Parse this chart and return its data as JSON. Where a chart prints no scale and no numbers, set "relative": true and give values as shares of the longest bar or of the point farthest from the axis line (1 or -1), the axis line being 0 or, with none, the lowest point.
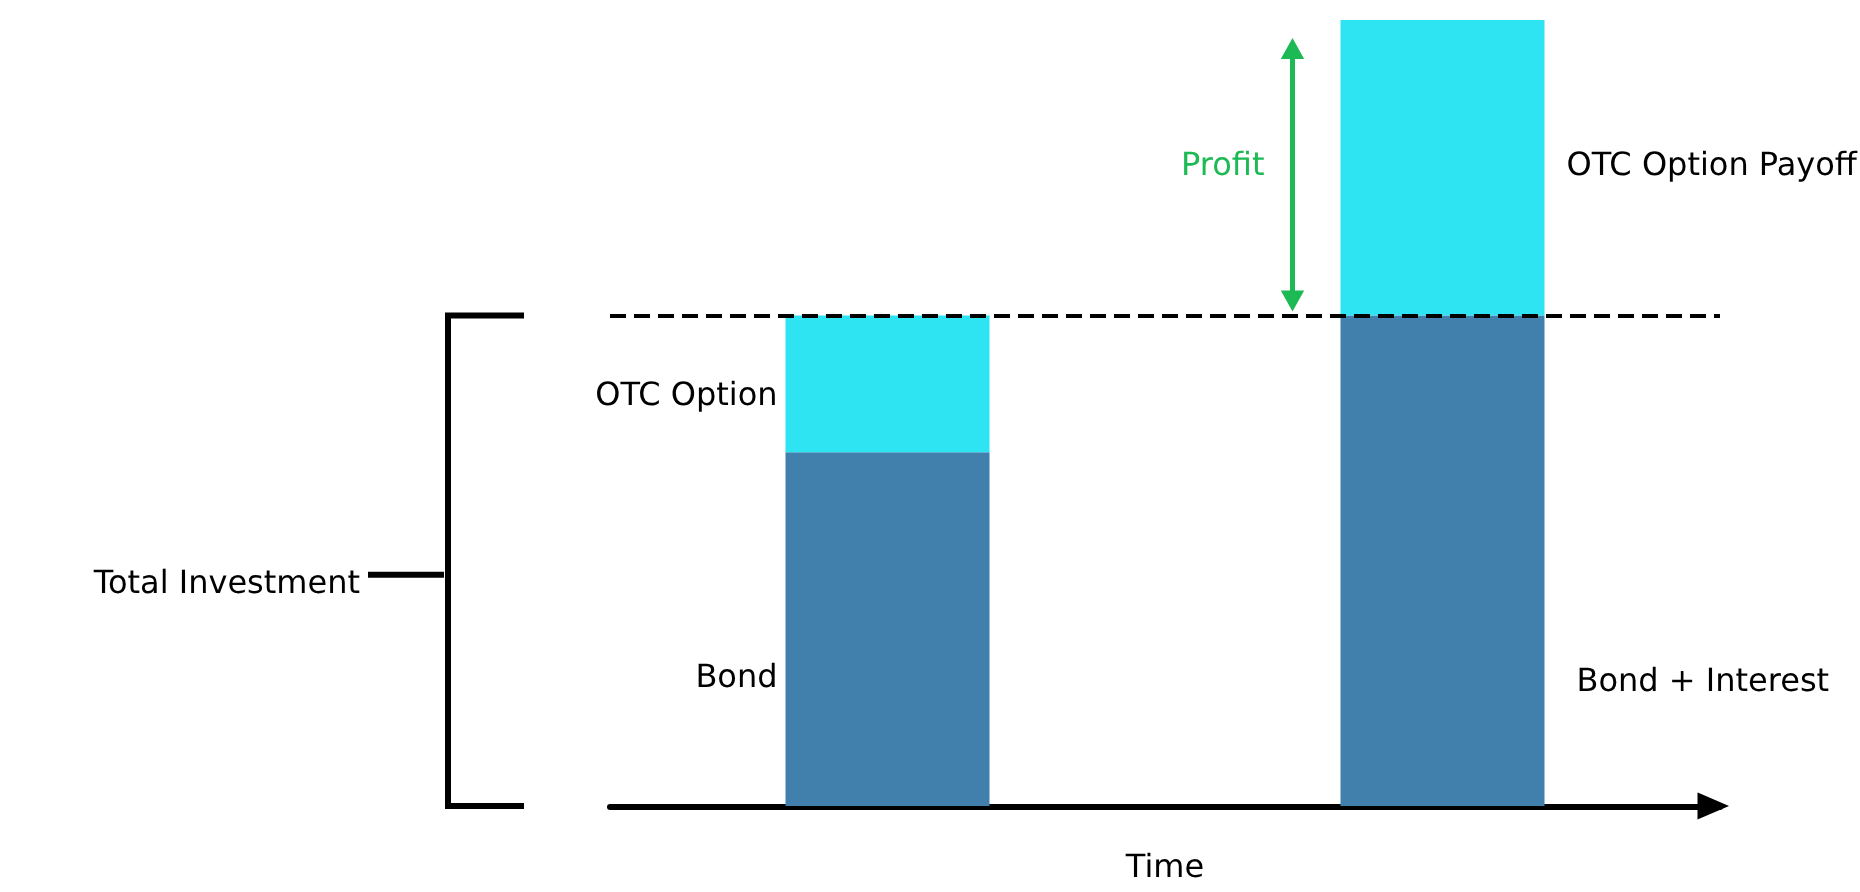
{
  "chart_data": {
    "type": "bar",
    "stacked": true,
    "relative": true,
    "xlabel": "Time",
    "categories": [
      null,
      null
    ],
    "series": [
      {
        "color": "#4180ad",
        "values": [
          0.45,
          0.624
        ]
      },
      {
        "color": "#2ee3f2",
        "values": [
          0.174,
          0.376
        ]
      }
    ],
    "ref_lines": [
      {
        "axis": "y",
        "value": 0.624,
        "color": "#000000",
        "line_style": "dashed"
      }
    ],
    "annotations": [
      "OTC Option",
      "Bond",
      "OTC Option Payoff",
      "Bond + Interest",
      "Profit",
      "Total Investment"
    ]
  }
}
